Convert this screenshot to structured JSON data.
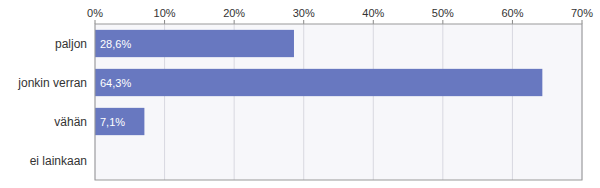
{
  "chart_data": {
    "type": "bar",
    "orientation": "horizontal",
    "categories": [
      "paljon",
      "jonkin verran",
      "vähän",
      "ei lainkaan"
    ],
    "values": [
      28.6,
      64.3,
      7.1,
      0.0
    ],
    "value_labels": [
      "28,6%",
      "64,3%",
      "7,1%",
      null
    ],
    "data_labels": true,
    "color": "#6878c0",
    "xlim": [
      0,
      70
    ],
    "xticks": [
      {
        "value": 0,
        "label": "0%"
      },
      {
        "value": 10,
        "label": "10%"
      },
      {
        "value": 20,
        "label": "20%"
      },
      {
        "value": 30,
        "label": "30%"
      },
      {
        "value": 40,
        "label": "40%"
      },
      {
        "value": 50,
        "label": "50%"
      },
      {
        "value": 60,
        "label": "60%"
      },
      {
        "value": 70,
        "label": "70%"
      }
    ],
    "grid": true
  }
}
